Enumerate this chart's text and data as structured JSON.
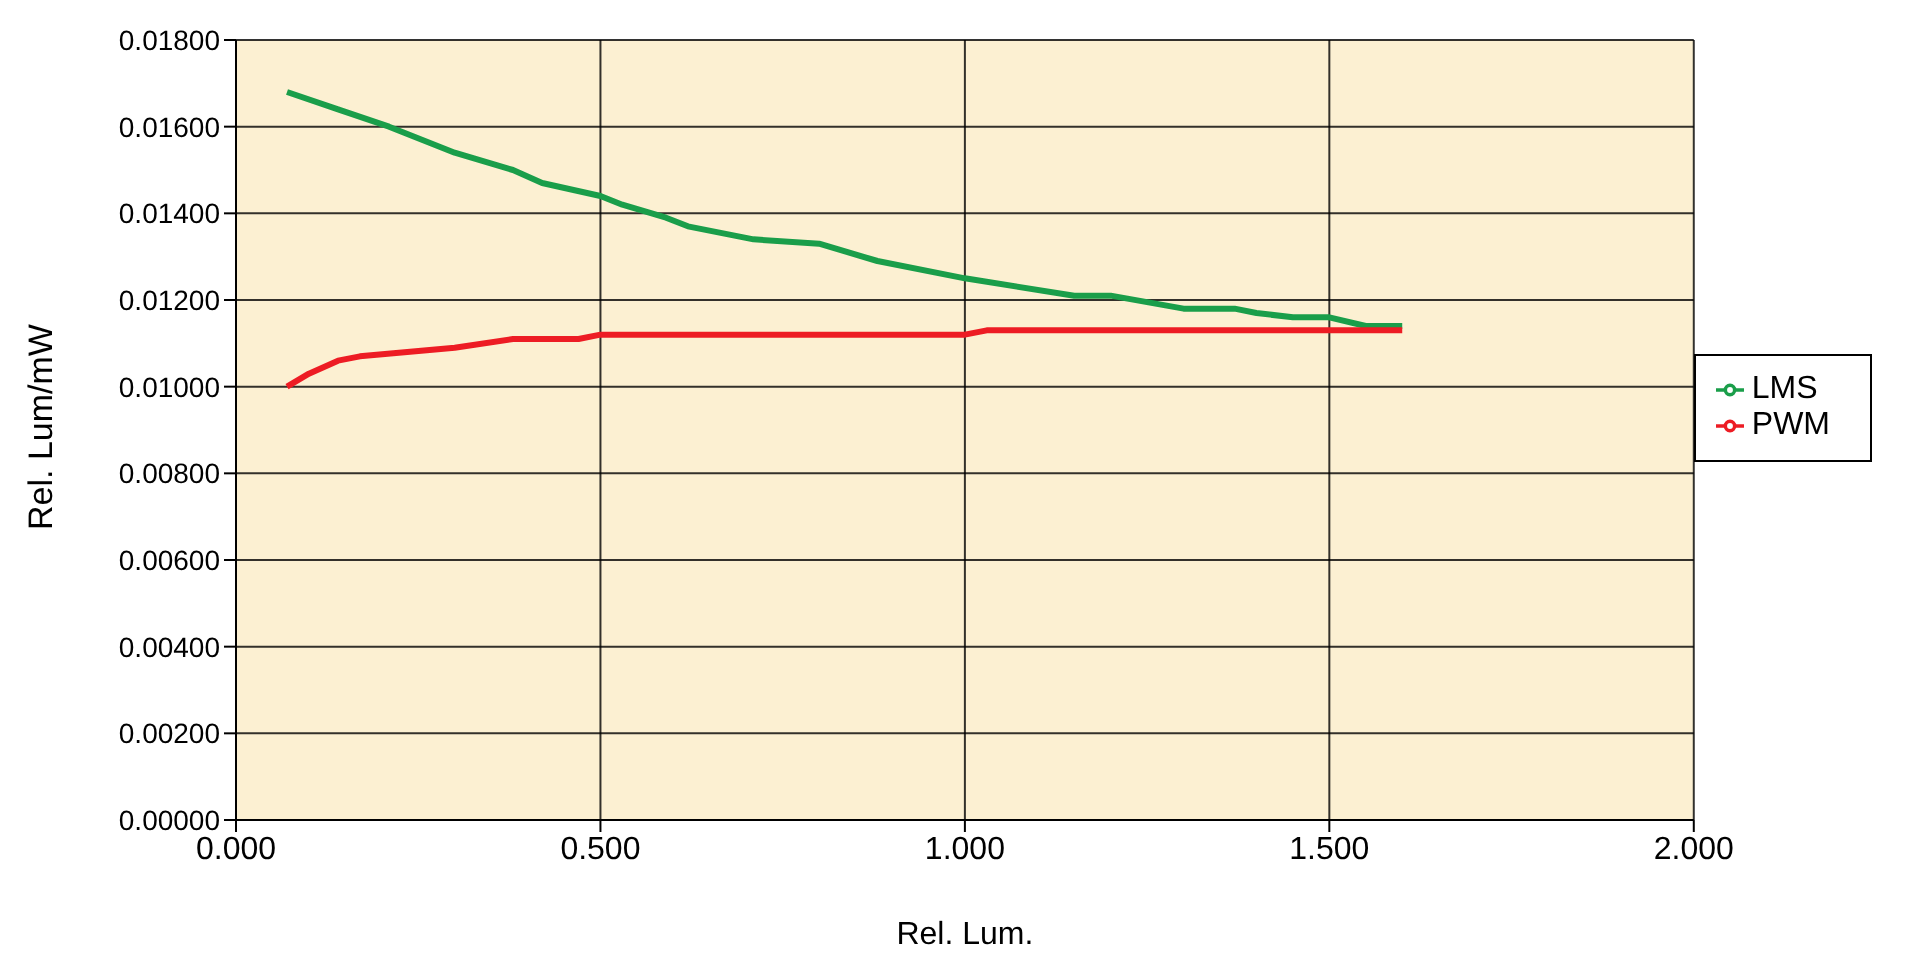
{
  "chart_data": {
    "type": "line",
    "xlabel": "Rel. Lum.",
    "ylabel": "Rel. Lum/mW",
    "xlim": [
      0,
      2
    ],
    "xticks": [
      {
        "value": 0,
        "label": "0.000"
      },
      {
        "value": 0.5,
        "label": "0.500"
      },
      {
        "value": 1,
        "label": "1.000"
      },
      {
        "value": 1.5,
        "label": "1.500"
      },
      {
        "value": 2,
        "label": "2.000"
      }
    ],
    "ylim": [
      0,
      0.018
    ],
    "yticks": [
      {
        "value": 0,
        "label": "0.00000"
      },
      {
        "value": 0.002,
        "label": "0.00200"
      },
      {
        "value": 0.004,
        "label": "0.00400"
      },
      {
        "value": 0.006,
        "label": "0.00600"
      },
      {
        "value": 0.008,
        "label": "0.00800"
      },
      {
        "value": 0.01,
        "label": "0.01000"
      },
      {
        "value": 0.012,
        "label": "0.01200"
      },
      {
        "value": 0.014,
        "label": "0.01400"
      },
      {
        "value": 0.016,
        "label": "0.01600"
      },
      {
        "value": 0.018,
        "label": "0.01800"
      }
    ],
    "grid": true,
    "legend": "right",
    "marker": "none",
    "line_style": "solid",
    "series": [
      {
        "name": "LMS",
        "color": "#1a9e4a",
        "x": [
          0.07,
          0.14,
          0.21,
          0.3,
          0.38,
          0.42,
          0.5,
          0.53,
          0.59,
          0.62,
          0.71,
          0.8,
          0.88,
          1.0,
          1.15,
          1.2,
          1.3,
          1.37,
          1.4,
          1.45,
          1.5,
          1.55,
          1.6
        ],
        "values": [
          0.0168,
          0.0164,
          0.016,
          0.0154,
          0.015,
          0.0147,
          0.0144,
          0.0142,
          0.0139,
          0.0137,
          0.0134,
          0.0133,
          0.0129,
          0.0125,
          0.0121,
          0.0121,
          0.0118,
          0.0118,
          0.0117,
          0.0116,
          0.0116,
          0.0114,
          0.0114
        ]
      },
      {
        "name": "PWM",
        "color": "#ed1c24",
        "x": [
          0.07,
          0.1,
          0.14,
          0.17,
          0.3,
          0.38,
          0.47,
          0.5,
          1.0,
          1.03,
          1.6
        ],
        "values": [
          0.01,
          0.0103,
          0.0106,
          0.0107,
          0.0109,
          0.0111,
          0.0111,
          0.0112,
          0.0112,
          0.0113,
          0.0113
        ]
      }
    ]
  }
}
